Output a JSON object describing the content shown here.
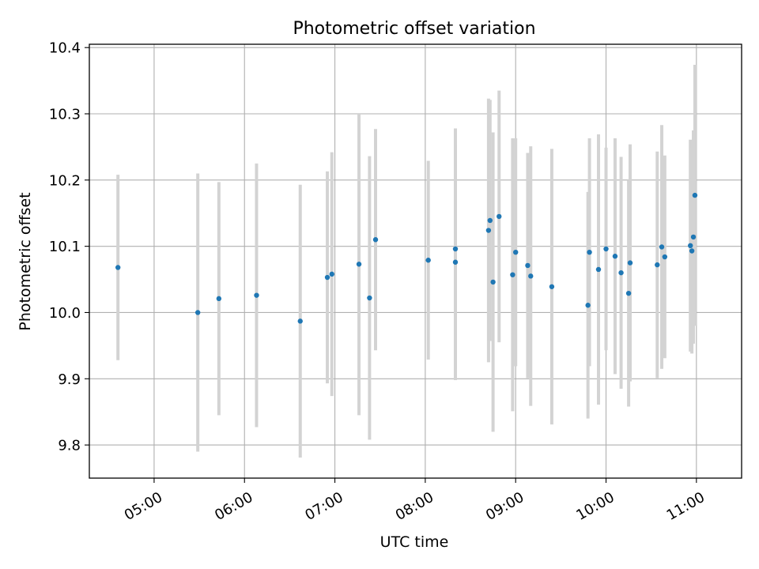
{
  "chart_data": {
    "type": "scatter",
    "title": "Photometric offset variation",
    "xlabel": "UTC time",
    "ylabel": "Photometric offset",
    "xlim": [
      "04:17",
      "11:30"
    ],
    "ylim": [
      9.75,
      10.405
    ],
    "x_ticks": [
      "05:00",
      "06:00",
      "07:00",
      "08:00",
      "09:00",
      "10:00",
      "11:00"
    ],
    "y_ticks": [
      "9.8",
      "9.9",
      "10.0",
      "10.1",
      "10.2",
      "10.3",
      "10.4"
    ],
    "grid": true,
    "marker_color": "#1f77b4",
    "errorbar_color": "#d3d3d3",
    "points": [
      {
        "x": "04:36",
        "y": 10.068,
        "err": 0.14
      },
      {
        "x": "05:29",
        "y": 10.0,
        "err": 0.21
      },
      {
        "x": "05:43",
        "y": 10.021,
        "err": 0.176
      },
      {
        "x": "06:08",
        "y": 10.026,
        "err": 0.199
      },
      {
        "x": "06:37",
        "y": 9.987,
        "err": 0.206
      },
      {
        "x": "06:55",
        "y": 10.053,
        "err": 0.16
      },
      {
        "x": "06:58",
        "y": 10.058,
        "err": 0.184
      },
      {
        "x": "07:16",
        "y": 10.073,
        "err": 0.228
      },
      {
        "x": "07:23",
        "y": 10.022,
        "err": 0.214
      },
      {
        "x": "07:27",
        "y": 10.11,
        "err": 0.167
      },
      {
        "x": "08:02",
        "y": 10.079,
        "err": 0.15
      },
      {
        "x": "08:20",
        "y": 10.096,
        "err": 0.182
      },
      {
        "x": "08:20",
        "y": 10.076,
        "err": 0.178
      },
      {
        "x": "08:42",
        "y": 10.124,
        "err": 0.199
      },
      {
        "x": "08:43",
        "y": 10.139,
        "err": 0.182
      },
      {
        "x": "08:45",
        "y": 10.046,
        "err": 0.226
      },
      {
        "x": "08:49",
        "y": 10.145,
        "err": 0.19
      },
      {
        "x": "08:58",
        "y": 10.057,
        "err": 0.206
      },
      {
        "x": "09:00",
        "y": 10.091,
        "err": 0.172
      },
      {
        "x": "09:08",
        "y": 10.071,
        "err": 0.17
      },
      {
        "x": "09:10",
        "y": 10.055,
        "err": 0.196
      },
      {
        "x": "09:24",
        "y": 10.039,
        "err": 0.208
      },
      {
        "x": "09:48",
        "y": 10.011,
        "err": 0.171
      },
      {
        "x": "09:49",
        "y": 10.091,
        "err": 0.172
      },
      {
        "x": "09:55",
        "y": 10.065,
        "err": 0.204
      },
      {
        "x": "10:00",
        "y": 10.096,
        "err": 0.153
      },
      {
        "x": "10:06",
        "y": 10.085,
        "err": 0.178
      },
      {
        "x": "10:10",
        "y": 10.06,
        "err": 0.175
      },
      {
        "x": "10:15",
        "y": 10.029,
        "err": 0.171
      },
      {
        "x": "10:16",
        "y": 10.075,
        "err": 0.179
      },
      {
        "x": "10:34",
        "y": 10.072,
        "err": 0.171
      },
      {
        "x": "10:37",
        "y": 10.099,
        "err": 0.184
      },
      {
        "x": "10:39",
        "y": 10.084,
        "err": 0.153
      },
      {
        "x": "10:56",
        "y": 10.101,
        "err": 0.16
      },
      {
        "x": "10:57",
        "y": 10.093,
        "err": 0.155
      },
      {
        "x": "10:58",
        "y": 10.114,
        "err": 0.161
      },
      {
        "x": "10:59",
        "y": 10.177,
        "err": 0.197
      }
    ]
  }
}
